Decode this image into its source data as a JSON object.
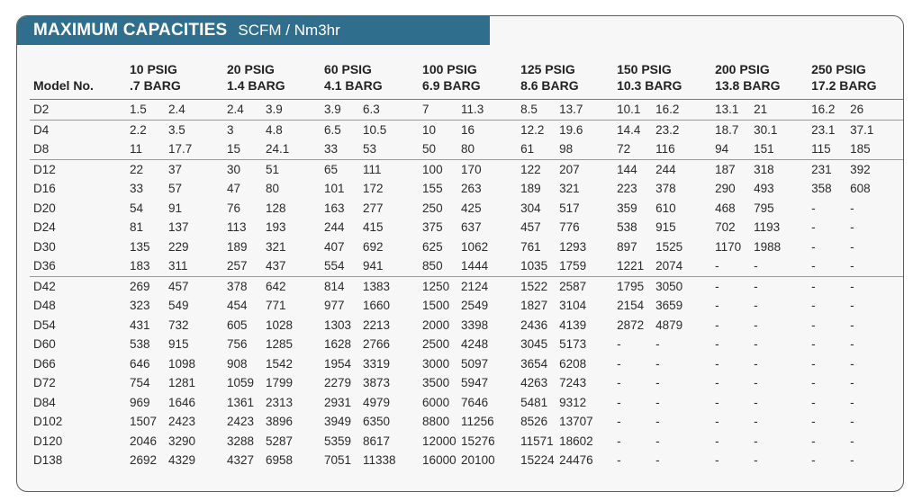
{
  "title": {
    "main": "MAXIMUM CAPACITIES",
    "sub": "SCFM / Nm3hr"
  },
  "table": {
    "model_header": "Model No.",
    "pressure_headers": [
      {
        "psig": "10 PSIG",
        "barg": ".7 BARG"
      },
      {
        "psig": "20 PSIG",
        "barg": "1.4 BARG"
      },
      {
        "psig": "60 PSIG",
        "barg": "4.1 BARG"
      },
      {
        "psig": "100 PSIG",
        "barg": "6.9 BARG"
      },
      {
        "psig": "125 PSIG",
        "barg": "8.6 BARG"
      },
      {
        "psig": "150 PSIG",
        "barg": "10.3 BARG"
      },
      {
        "psig": "200 PSIG",
        "barg": "13.8 BARG"
      },
      {
        "psig": "250 PSIG",
        "barg": "17.2 BARG"
      }
    ],
    "rows": [
      {
        "model": "D2",
        "group_start": true,
        "values": [
          "1.5",
          "2.4",
          "2.4",
          "3.9",
          "3.9",
          "6.3",
          "7",
          "11.3",
          "8.5",
          "13.7",
          "10.1",
          "16.2",
          "13.1",
          "21",
          "16.2",
          "26"
        ]
      },
      {
        "model": "D4",
        "group_start": true,
        "values": [
          "2.2",
          "3.5",
          "3",
          "4.8",
          "6.5",
          "10.5",
          "10",
          "16",
          "12.2",
          "19.6",
          "14.4",
          "23.2",
          "18.7",
          "30.1",
          "23.1",
          "37.1"
        ]
      },
      {
        "model": "D8",
        "group_start": false,
        "values": [
          "11",
          "17.7",
          "15",
          "24.1",
          "33",
          "53",
          "50",
          "80",
          "61",
          "98",
          "72",
          "116",
          "94",
          "151",
          "115",
          "185"
        ]
      },
      {
        "model": "D12",
        "group_start": true,
        "values": [
          "22",
          "37",
          "30",
          "51",
          "65",
          "111",
          "100",
          "170",
          "122",
          "207",
          "144",
          "244",
          "187",
          "318",
          "231",
          "392"
        ]
      },
      {
        "model": "D16",
        "group_start": false,
        "values": [
          "33",
          "57",
          "47",
          "80",
          "101",
          "172",
          "155",
          "263",
          "189",
          "321",
          "223",
          "378",
          "290",
          "493",
          "358",
          "608"
        ]
      },
      {
        "model": "D20",
        "group_start": false,
        "values": [
          "54",
          "91",
          "76",
          "128",
          "163",
          "277",
          "250",
          "425",
          "304",
          "517",
          "359",
          "610",
          "468",
          "795",
          "-",
          "-"
        ]
      },
      {
        "model": "D24",
        "group_start": false,
        "values": [
          "81",
          "137",
          "113",
          "193",
          "244",
          "415",
          "375",
          "637",
          "457",
          "776",
          "538",
          "915",
          "702",
          "1193",
          "-",
          "-"
        ]
      },
      {
        "model": "D30",
        "group_start": false,
        "values": [
          "135",
          "229",
          "189",
          "321",
          "407",
          "692",
          "625",
          "1062",
          "761",
          "1293",
          "897",
          "1525",
          "1170",
          "1988",
          "-",
          "-"
        ]
      },
      {
        "model": "D36",
        "group_start": false,
        "values": [
          "183",
          "311",
          "257",
          "437",
          "554",
          "941",
          "850",
          "1444",
          "1035",
          "1759",
          "1221",
          "2074",
          "-",
          "-",
          "-",
          "-"
        ]
      },
      {
        "model": "D42",
        "group_start": true,
        "values": [
          "269",
          "457",
          "378",
          "642",
          "814",
          "1383",
          "1250",
          "2124",
          "1522",
          "2587",
          "1795",
          "3050",
          "-",
          "-",
          "-",
          "-"
        ]
      },
      {
        "model": "D48",
        "group_start": false,
        "values": [
          "323",
          "549",
          "454",
          "771",
          "977",
          "1660",
          "1500",
          "2549",
          "1827",
          "3104",
          "2154",
          "3659",
          "-",
          "-",
          "-",
          "-"
        ]
      },
      {
        "model": "D54",
        "group_start": false,
        "values": [
          "431",
          "732",
          "605",
          "1028",
          "1303",
          "2213",
          "2000",
          "3398",
          "2436",
          "4139",
          "2872",
          "4879",
          "-",
          "-",
          "-",
          "-"
        ]
      },
      {
        "model": "D60",
        "group_start": false,
        "values": [
          "538",
          "915",
          "756",
          "1285",
          "1628",
          "2766",
          "2500",
          "4248",
          "3045",
          "5173",
          "-",
          "-",
          "-",
          "-",
          "-",
          "-"
        ]
      },
      {
        "model": "D66",
        "group_start": false,
        "values": [
          "646",
          "1098",
          "908",
          "1542",
          "1954",
          "3319",
          "3000",
          "5097",
          "3654",
          "6208",
          "-",
          "-",
          "-",
          "-",
          "-",
          "-"
        ]
      },
      {
        "model": "D72",
        "group_start": false,
        "values": [
          "754",
          "1281",
          "1059",
          "1799",
          "2279",
          "3873",
          "3500",
          "5947",
          "4263",
          "7243",
          "-",
          "-",
          "-",
          "-",
          "-",
          "-"
        ]
      },
      {
        "model": "D84",
        "group_start": false,
        "values": [
          "969",
          "1646",
          "1361",
          "2313",
          "2931",
          "4979",
          "6000",
          "7646",
          "5481",
          "9312",
          "-",
          "-",
          "-",
          "-",
          "-",
          "-"
        ]
      },
      {
        "model": "D102",
        "group_start": false,
        "values": [
          "1507",
          "2423",
          "2423",
          "3896",
          "3949",
          "6350",
          "8800",
          "11256",
          "8526",
          "13707",
          "-",
          "-",
          "-",
          "-",
          "-",
          "-"
        ]
      },
      {
        "model": "D120",
        "group_start": false,
        "values": [
          "2046",
          "3290",
          "3288",
          "5287",
          "5359",
          "8617",
          "12000",
          "15276",
          "11571",
          "18602",
          "-",
          "-",
          "-",
          "-",
          "-",
          "-"
        ]
      },
      {
        "model": "D138",
        "group_start": false,
        "values": [
          "2692",
          "4329",
          "4327",
          "6958",
          "7051",
          "11338",
          "16000",
          "20100",
          "15224",
          "24476",
          "-",
          "-",
          "-",
          "-",
          "-",
          "-"
        ]
      }
    ]
  }
}
